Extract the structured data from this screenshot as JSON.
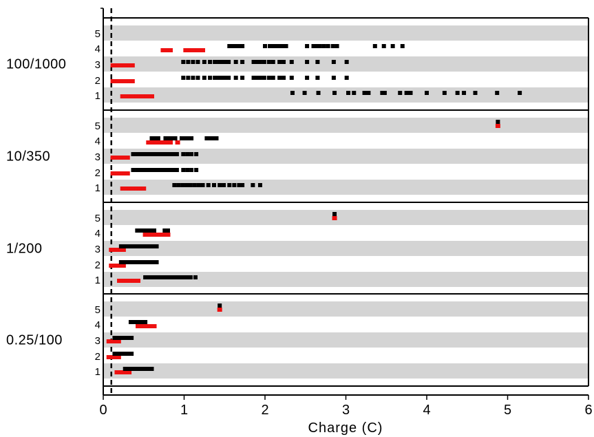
{
  "chart_data": {
    "type": "scatter",
    "title": "",
    "xlabel": "Charge (C)",
    "ylabel": "",
    "xlim": [
      0,
      6
    ],
    "x_ticks": [
      "0",
      "1",
      "2",
      "3",
      "4",
      "5",
      "6"
    ],
    "row_labels": [
      "1",
      "2",
      "3",
      "4",
      "5"
    ],
    "reference_line_x": 0.1,
    "colors": {
      "black_series": "#000000",
      "red_series": "#ee1111",
      "band": "#d4d4d4",
      "frame": "#000000"
    },
    "groups": [
      {
        "label": "100/1000",
        "rows": [
          {
            "row": "5",
            "black": [],
            "red": []
          },
          {
            "row": "4",
            "black": [
              1.56,
              1.6,
              1.64,
              1.68,
              1.72,
              2.0,
              2.06,
              2.1,
              2.14,
              2.18,
              2.22,
              2.26,
              2.52,
              2.6,
              2.64,
              2.68,
              2.73,
              2.78,
              2.84,
              2.89,
              3.36,
              3.47,
              3.58,
              3.7
            ],
            "red": [
              0.74,
              0.77,
              0.8,
              0.83,
              1.02,
              1.05,
              1.08,
              1.11,
              1.14,
              1.17,
              1.2,
              1.23
            ]
          },
          {
            "row": "3",
            "black": [
              0.99,
              1.05,
              1.11,
              1.17,
              1.25,
              1.32,
              1.38,
              1.43,
              1.47,
              1.51,
              1.55,
              1.64,
              1.72,
              1.86,
              1.9,
              1.94,
              1.99,
              2.05,
              2.1,
              2.18,
              2.23,
              2.33,
              2.52,
              2.65,
              2.85,
              3.01
            ],
            "red": [
              0.12,
              0.15,
              0.18,
              0.21,
              0.24,
              0.27,
              0.3,
              0.33,
              0.36
            ]
          },
          {
            "row": "2",
            "black": [
              0.99,
              1.05,
              1.11,
              1.17,
              1.25,
              1.32,
              1.38,
              1.43,
              1.47,
              1.51,
              1.55,
              1.64,
              1.72,
              1.86,
              1.9,
              1.94,
              1.99,
              2.05,
              2.1,
              2.18,
              2.23,
              2.33,
              2.52,
              2.65,
              2.85,
              3.01
            ],
            "red": [
              0.12,
              0.15,
              0.18,
              0.21,
              0.24,
              0.27,
              0.3,
              0.33,
              0.36
            ]
          },
          {
            "row": "1",
            "black": [
              2.34,
              2.49,
              2.66,
              2.86,
              3.03,
              3.1,
              3.23,
              3.28,
              3.45,
              3.48,
              3.67,
              3.75,
              3.8,
              4.0,
              4.22,
              4.38,
              4.46,
              4.6,
              4.87,
              5.15
            ],
            "red": [
              0.24,
              0.27,
              0.3,
              0.33,
              0.36,
              0.39,
              0.42,
              0.45,
              0.48,
              0.51,
              0.54,
              0.57,
              0.6
            ]
          }
        ]
      },
      {
        "label": "10/350",
        "rows": [
          {
            "row": "5",
            "black": [
              4.88
            ],
            "red": [
              4.88
            ]
          },
          {
            "row": "4",
            "black": [
              0.6,
              0.64,
              0.68,
              0.77,
              0.81,
              0.85,
              0.89,
              0.97,
              1.01,
              1.05,
              1.09,
              1.28,
              1.32,
              1.36,
              1.4
            ],
            "red": [
              0.56,
              0.59,
              0.62,
              0.65,
              0.68,
              0.71,
              0.74,
              0.77,
              0.8,
              0.83,
              0.92
            ]
          },
          {
            "row": "3",
            "black": [
              0.37,
              0.42,
              0.46,
              0.5,
              0.54,
              0.58,
              0.62,
              0.66,
              0.71,
              0.75,
              0.79,
              0.83,
              0.87,
              0.91,
              0.99,
              1.04,
              1.09,
              1.15
            ],
            "red": [
              0.12,
              0.15,
              0.18,
              0.21,
              0.24,
              0.27,
              0.3
            ]
          },
          {
            "row": "2",
            "black": [
              0.37,
              0.42,
              0.46,
              0.5,
              0.54,
              0.58,
              0.62,
              0.66,
              0.71,
              0.75,
              0.79,
              0.83,
              0.87,
              0.91,
              0.99,
              1.04,
              1.09,
              1.15
            ],
            "red": [
              0.12,
              0.15,
              0.18,
              0.21,
              0.24,
              0.27,
              0.3
            ]
          },
          {
            "row": "1",
            "black": [
              0.88,
              0.93,
              0.98,
              1.03,
              1.08,
              1.13,
              1.18,
              1.23,
              1.3,
              1.37,
              1.44,
              1.49,
              1.56,
              1.62,
              1.68,
              1.72,
              1.85,
              1.94
            ],
            "red": [
              0.24,
              0.27,
              0.3,
              0.33,
              0.36,
              0.39,
              0.42,
              0.45,
              0.48,
              0.5
            ]
          }
        ]
      },
      {
        "label": "1/200",
        "rows": [
          {
            "row": "5",
            "black": [
              2.86
            ],
            "red": [
              2.86
            ]
          },
          {
            "row": "4",
            "black": [
              0.42,
              0.45,
              0.48,
              0.51,
              0.54,
              0.57,
              0.6,
              0.63,
              0.76,
              0.8
            ],
            "red": [
              0.52,
              0.55,
              0.58,
              0.61,
              0.64,
              0.67,
              0.7,
              0.73,
              0.76,
              0.8
            ]
          },
          {
            "row": "3",
            "black": [
              0.22,
              0.26,
              0.3,
              0.34,
              0.38,
              0.42,
              0.46,
              0.5,
              0.54,
              0.58,
              0.62,
              0.66
            ],
            "red": [
              0.1,
              0.13,
              0.16,
              0.19,
              0.22,
              0.25
            ]
          },
          {
            "row": "2",
            "black": [
              0.22,
              0.26,
              0.3,
              0.34,
              0.38,
              0.42,
              0.46,
              0.5,
              0.54,
              0.58,
              0.62,
              0.66
            ],
            "red": [
              0.1,
              0.13,
              0.16,
              0.19,
              0.22,
              0.25
            ]
          },
          {
            "row": "1",
            "black": [
              0.52,
              0.56,
              0.6,
              0.64,
              0.68,
              0.72,
              0.76,
              0.8,
              0.84,
              0.88,
              0.92,
              0.96,
              1.0,
              1.04,
              1.08,
              1.14
            ],
            "red": [
              0.2,
              0.23,
              0.26,
              0.29,
              0.32,
              0.35,
              0.38,
              0.41,
              0.43
            ]
          }
        ]
      },
      {
        "label": "0.25/100",
        "rows": [
          {
            "row": "5",
            "black": [
              1.44
            ],
            "red": [
              1.44
            ]
          },
          {
            "row": "4",
            "black": [
              0.34,
              0.37,
              0.4,
              0.43,
              0.46,
              0.49,
              0.52
            ],
            "red": [
              0.43,
              0.46,
              0.49,
              0.52,
              0.55,
              0.58,
              0.61,
              0.63
            ]
          },
          {
            "row": "3",
            "black": [
              0.14,
              0.17,
              0.2,
              0.23,
              0.26,
              0.29,
              0.32,
              0.35
            ],
            "red": [
              0.07,
              0.1,
              0.13,
              0.16,
              0.19
            ]
          },
          {
            "row": "2",
            "black": [
              0.14,
              0.17,
              0.2,
              0.23,
              0.26,
              0.29,
              0.32,
              0.35
            ],
            "red": [
              0.07,
              0.1,
              0.13,
              0.16,
              0.19
            ]
          },
          {
            "row": "1",
            "black": [
              0.27,
              0.3,
              0.33,
              0.36,
              0.39,
              0.42,
              0.45,
              0.48,
              0.51,
              0.54,
              0.57,
              0.6
            ],
            "red": [
              0.17,
              0.2,
              0.23,
              0.26,
              0.29,
              0.32
            ]
          }
        ]
      }
    ]
  }
}
